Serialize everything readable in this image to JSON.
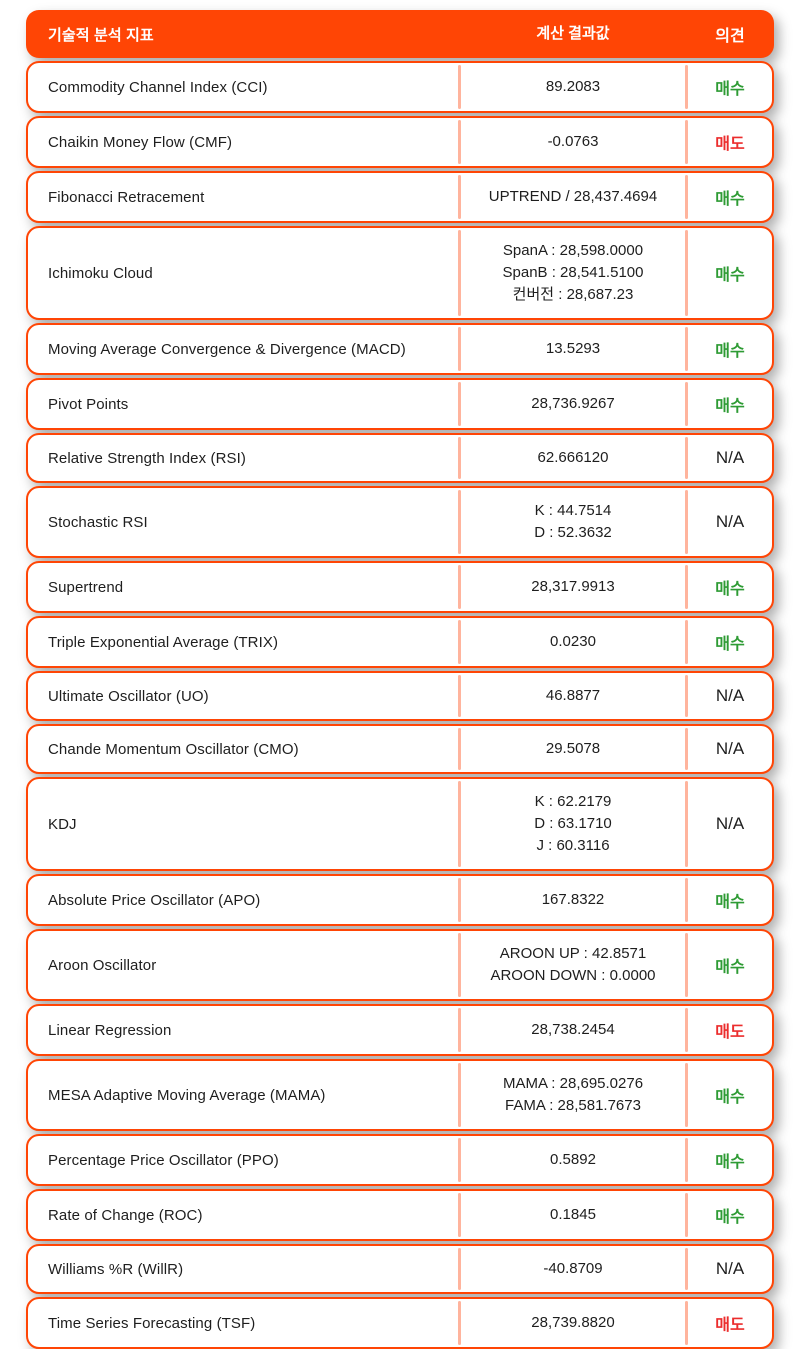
{
  "colors": {
    "accent_orange": "#FF4505",
    "divider_salmon": "#FFB49D",
    "buy_green": "#2E9B34",
    "sell_red": "#EB2D2D",
    "text_dark": "#1E1E1E",
    "header_text": "#FFFFFF",
    "card_background": "#FFFFFF"
  },
  "header": {
    "indicator_label": "기술적 분석 지표",
    "value_label": "계산 결과값",
    "opinion_label": "의견"
  },
  "opinion_legend": {
    "buy": "매수",
    "sell": "매도",
    "na": "N/A"
  },
  "rows": [
    {
      "name": "Commodity Channel Index (CCI)",
      "values": [
        "89.2083"
      ],
      "opinion": "매수",
      "opinion_type": "buy"
    },
    {
      "name": "Chaikin Money Flow (CMF)",
      "values": [
        "-0.0763"
      ],
      "opinion": "매도",
      "opinion_type": "sell"
    },
    {
      "name": "Fibonacci Retracement",
      "values": [
        "UPTREND / 28,437.4694"
      ],
      "opinion": "매수",
      "opinion_type": "buy"
    },
    {
      "name": "Ichimoku Cloud",
      "values": [
        "SpanA : 28,598.0000",
        "SpanB : 28,541.5100",
        "컨버전 : 28,687.23"
      ],
      "opinion": "매수",
      "opinion_type": "buy"
    },
    {
      "name": "Moving Average Convergence & Divergence (MACD)",
      "values": [
        "13.5293"
      ],
      "opinion": "매수",
      "opinion_type": "buy"
    },
    {
      "name": "Pivot Points",
      "values": [
        "28,736.9267"
      ],
      "opinion": "매수",
      "opinion_type": "buy"
    },
    {
      "name": "Relative Strength Index (RSI)",
      "values": [
        "62.666120"
      ],
      "opinion": "N/A",
      "opinion_type": "na"
    },
    {
      "name": "Stochastic RSI",
      "values": [
        "K : 44.7514",
        "D : 52.3632"
      ],
      "opinion": "N/A",
      "opinion_type": "na"
    },
    {
      "name": "Supertrend",
      "values": [
        "28,317.9913"
      ],
      "opinion": "매수",
      "opinion_type": "buy"
    },
    {
      "name": "Triple Exponential Average (TRIX)",
      "values": [
        "0.0230"
      ],
      "opinion": "매수",
      "opinion_type": "buy"
    },
    {
      "name": "Ultimate Oscillator (UO)",
      "values": [
        "46.8877"
      ],
      "opinion": "N/A",
      "opinion_type": "na"
    },
    {
      "name": "Chande Momentum Oscillator (CMO)",
      "values": [
        "29.5078"
      ],
      "opinion": "N/A",
      "opinion_type": "na"
    },
    {
      "name": "KDJ",
      "values": [
        "K : 62.2179",
        "D : 63.1710",
        "J : 60.3116"
      ],
      "opinion": "N/A",
      "opinion_type": "na"
    },
    {
      "name": "Absolute Price Oscillator (APO)",
      "values": [
        "167.8322"
      ],
      "opinion": "매수",
      "opinion_type": "buy"
    },
    {
      "name": "Aroon Oscillator",
      "values": [
        "AROON UP : 42.8571",
        "AROON DOWN : 0.0000"
      ],
      "opinion": "매수",
      "opinion_type": "buy"
    },
    {
      "name": "Linear Regression",
      "values": [
        "28,738.2454"
      ],
      "opinion": "매도",
      "opinion_type": "sell"
    },
    {
      "name": "MESA Adaptive Moving Average (MAMA)",
      "values": [
        "MAMA : 28,695.0276",
        "FAMA : 28,581.7673"
      ],
      "opinion": "매수",
      "opinion_type": "buy"
    },
    {
      "name": "Percentage Price Oscillator (PPO)",
      "values": [
        "0.5892"
      ],
      "opinion": "매수",
      "opinion_type": "buy"
    },
    {
      "name": "Rate of Change (ROC)",
      "values": [
        "0.1845"
      ],
      "opinion": "매수",
      "opinion_type": "buy"
    },
    {
      "name": "Williams %R (WillR)",
      "values": [
        "-40.8709"
      ],
      "opinion": "N/A",
      "opinion_type": "na"
    },
    {
      "name": "Time Series Forecasting (TSF)",
      "values": [
        "28,739.8820"
      ],
      "opinion": "매도",
      "opinion_type": "sell"
    }
  ]
}
